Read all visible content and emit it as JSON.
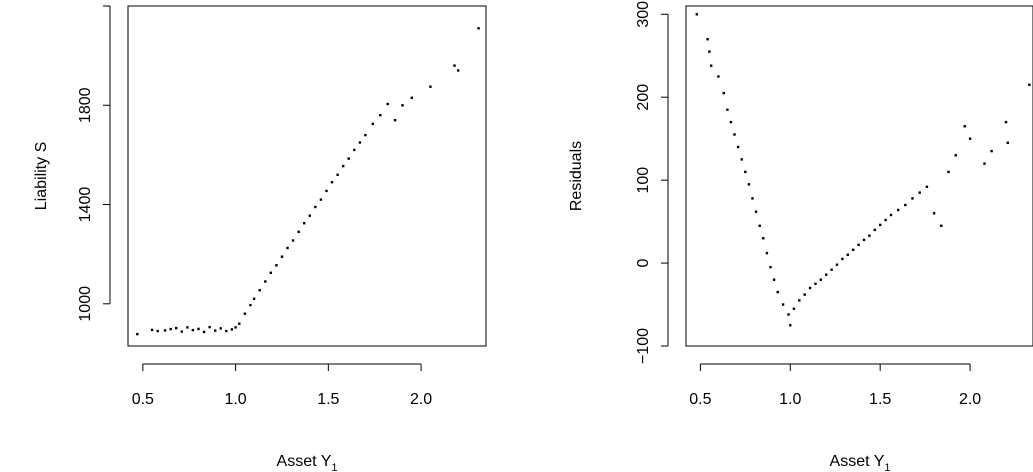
{
  "chart_data": [
    {
      "type": "scatter",
      "xlabel": "Asset Y",
      "xlabel_subscript": "1",
      "ylabel": "Liability S",
      "xlim": [
        0.42,
        2.35
      ],
      "ylim": [
        830,
        2200
      ],
      "x_ticks": [
        {
          "value": 0.5,
          "label": "0.5"
        },
        {
          "value": 1.0,
          "label": "1.0"
        },
        {
          "value": 1.5,
          "label": "1.5"
        },
        {
          "value": 2.0,
          "label": "2.0"
        }
      ],
      "y_ticks": [
        {
          "value": 1000,
          "label": "1000"
        },
        {
          "value": 1400,
          "label": "1400"
        },
        {
          "value": 1800,
          "label": "1800"
        },
        {
          "value": 2200,
          "label": ""
        }
      ],
      "grid": false,
      "marker_color": "#000000",
      "points": [
        [
          0.47,
          878
        ],
        [
          0.55,
          895
        ],
        [
          0.58,
          890
        ],
        [
          0.62,
          893
        ],
        [
          0.65,
          898
        ],
        [
          0.68,
          902
        ],
        [
          0.71,
          888
        ],
        [
          0.74,
          905
        ],
        [
          0.77,
          894
        ],
        [
          0.8,
          899
        ],
        [
          0.83,
          887
        ],
        [
          0.86,
          906
        ],
        [
          0.89,
          892
        ],
        [
          0.92,
          901
        ],
        [
          0.95,
          890
        ],
        [
          0.98,
          897
        ],
        [
          1.0,
          905
        ],
        [
          1.02,
          920
        ],
        [
          1.05,
          960
        ],
        [
          1.08,
          995
        ],
        [
          1.1,
          1020
        ],
        [
          1.13,
          1055
        ],
        [
          1.16,
          1090
        ],
        [
          1.19,
          1125
        ],
        [
          1.22,
          1155
        ],
        [
          1.25,
          1190
        ],
        [
          1.28,
          1225
        ],
        [
          1.31,
          1255
        ],
        [
          1.34,
          1290
        ],
        [
          1.37,
          1325
        ],
        [
          1.4,
          1355
        ],
        [
          1.43,
          1390
        ],
        [
          1.46,
          1420
        ],
        [
          1.49,
          1455
        ],
        [
          1.52,
          1490
        ],
        [
          1.55,
          1520
        ],
        [
          1.58,
          1555
        ],
        [
          1.61,
          1585
        ],
        [
          1.64,
          1620
        ],
        [
          1.67,
          1650
        ],
        [
          1.7,
          1680
        ],
        [
          1.74,
          1725
        ],
        [
          1.78,
          1760
        ],
        [
          1.82,
          1805
        ],
        [
          1.86,
          1740
        ],
        [
          1.9,
          1800
        ],
        [
          1.95,
          1830
        ],
        [
          2.05,
          1875
        ],
        [
          2.18,
          1960
        ],
        [
          2.2,
          1940
        ],
        [
          2.31,
          2110
        ]
      ]
    },
    {
      "type": "scatter",
      "xlabel": "Asset Y",
      "xlabel_subscript": "1",
      "ylabel": "Residuals",
      "xlim": [
        0.42,
        2.35
      ],
      "ylim": [
        -100,
        310
      ],
      "x_ticks": [
        {
          "value": 0.5,
          "label": "0.5"
        },
        {
          "value": 1.0,
          "label": "1.0"
        },
        {
          "value": 1.5,
          "label": "1.5"
        },
        {
          "value": 2.0,
          "label": "2.0"
        }
      ],
      "y_ticks": [
        {
          "value": -100,
          "label": "−100"
        },
        {
          "value": 0,
          "label": "0"
        },
        {
          "value": 100,
          "label": "100"
        },
        {
          "value": 200,
          "label": "200"
        },
        {
          "value": 300,
          "label": "300"
        }
      ],
      "grid": false,
      "marker_color": "#000000",
      "points": [
        [
          0.48,
          300
        ],
        [
          0.54,
          270
        ],
        [
          0.55,
          255
        ],
        [
          0.56,
          238
        ],
        [
          0.6,
          225
        ],
        [
          0.63,
          205
        ],
        [
          0.65,
          185
        ],
        [
          0.67,
          170
        ],
        [
          0.69,
          155
        ],
        [
          0.71,
          140
        ],
        [
          0.73,
          125
        ],
        [
          0.75,
          110
        ],
        [
          0.77,
          95
        ],
        [
          0.79,
          78
        ],
        [
          0.81,
          62
        ],
        [
          0.83,
          45
        ],
        [
          0.85,
          30
        ],
        [
          0.87,
          12
        ],
        [
          0.89,
          -5
        ],
        [
          0.91,
          -20
        ],
        [
          0.93,
          -35
        ],
        [
          0.96,
          -50
        ],
        [
          0.99,
          -62
        ],
        [
          1.0,
          -75
        ],
        [
          1.02,
          -55
        ],
        [
          1.05,
          -45
        ],
        [
          1.08,
          -38
        ],
        [
          1.11,
          -30
        ],
        [
          1.14,
          -25
        ],
        [
          1.17,
          -20
        ],
        [
          1.2,
          -14
        ],
        [
          1.23,
          -8
        ],
        [
          1.26,
          -2
        ],
        [
          1.29,
          5
        ],
        [
          1.32,
          10
        ],
        [
          1.35,
          16
        ],
        [
          1.38,
          22
        ],
        [
          1.41,
          28
        ],
        [
          1.44,
          33
        ],
        [
          1.47,
          40
        ],
        [
          1.5,
          46
        ],
        [
          1.53,
          52
        ],
        [
          1.56,
          58
        ],
        [
          1.6,
          64
        ],
        [
          1.64,
          70
        ],
        [
          1.68,
          78
        ],
        [
          1.72,
          85
        ],
        [
          1.76,
          92
        ],
        [
          1.8,
          60
        ],
        [
          1.84,
          45
        ],
        [
          1.88,
          110
        ],
        [
          1.92,
          130
        ],
        [
          1.97,
          165
        ],
        [
          2.0,
          150
        ],
        [
          2.08,
          120
        ],
        [
          2.12,
          135
        ],
        [
          2.2,
          170
        ],
        [
          2.21,
          145
        ],
        [
          2.33,
          215
        ]
      ]
    }
  ]
}
